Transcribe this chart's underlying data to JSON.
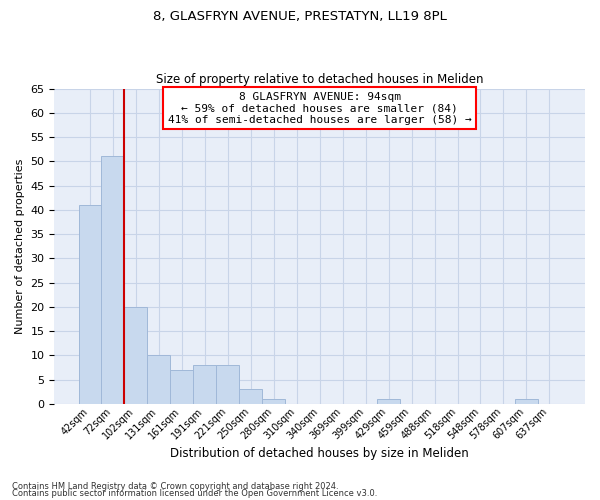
{
  "title_line1": "8, GLASFRYN AVENUE, PRESTATYN, LL19 8PL",
  "title_line2": "Size of property relative to detached houses in Meliden",
  "xlabel": "Distribution of detached houses by size in Meliden",
  "ylabel": "Number of detached properties",
  "categories": [
    "42sqm",
    "72sqm",
    "102sqm",
    "131sqm",
    "161sqm",
    "191sqm",
    "221sqm",
    "250sqm",
    "280sqm",
    "310sqm",
    "340sqm",
    "369sqm",
    "399sqm",
    "429sqm",
    "459sqm",
    "488sqm",
    "518sqm",
    "548sqm",
    "578sqm",
    "607sqm",
    "637sqm"
  ],
  "values": [
    41,
    51,
    20,
    10,
    7,
    8,
    8,
    3,
    1,
    0,
    0,
    0,
    0,
    1,
    0,
    0,
    0,
    0,
    0,
    1,
    0
  ],
  "bar_color": "#c8d9ee",
  "bar_edge_color": "#a0b8d8",
  "grid_color": "#c8d4e8",
  "background_color": "#e8eef8",
  "ylim": [
    0,
    65
  ],
  "yticks": [
    0,
    5,
    10,
    15,
    20,
    25,
    30,
    35,
    40,
    45,
    50,
    55,
    60,
    65
  ],
  "annotation_title": "8 GLASFRYN AVENUE: 94sqm",
  "annotation_line1": "← 59% of detached houses are smaller (84)",
  "annotation_line2": "41% of semi-detached houses are larger (58) →",
  "vline_color": "#cc0000",
  "footnote1": "Contains HM Land Registry data © Crown copyright and database right 2024.",
  "footnote2": "Contains public sector information licensed under the Open Government Licence v3.0."
}
